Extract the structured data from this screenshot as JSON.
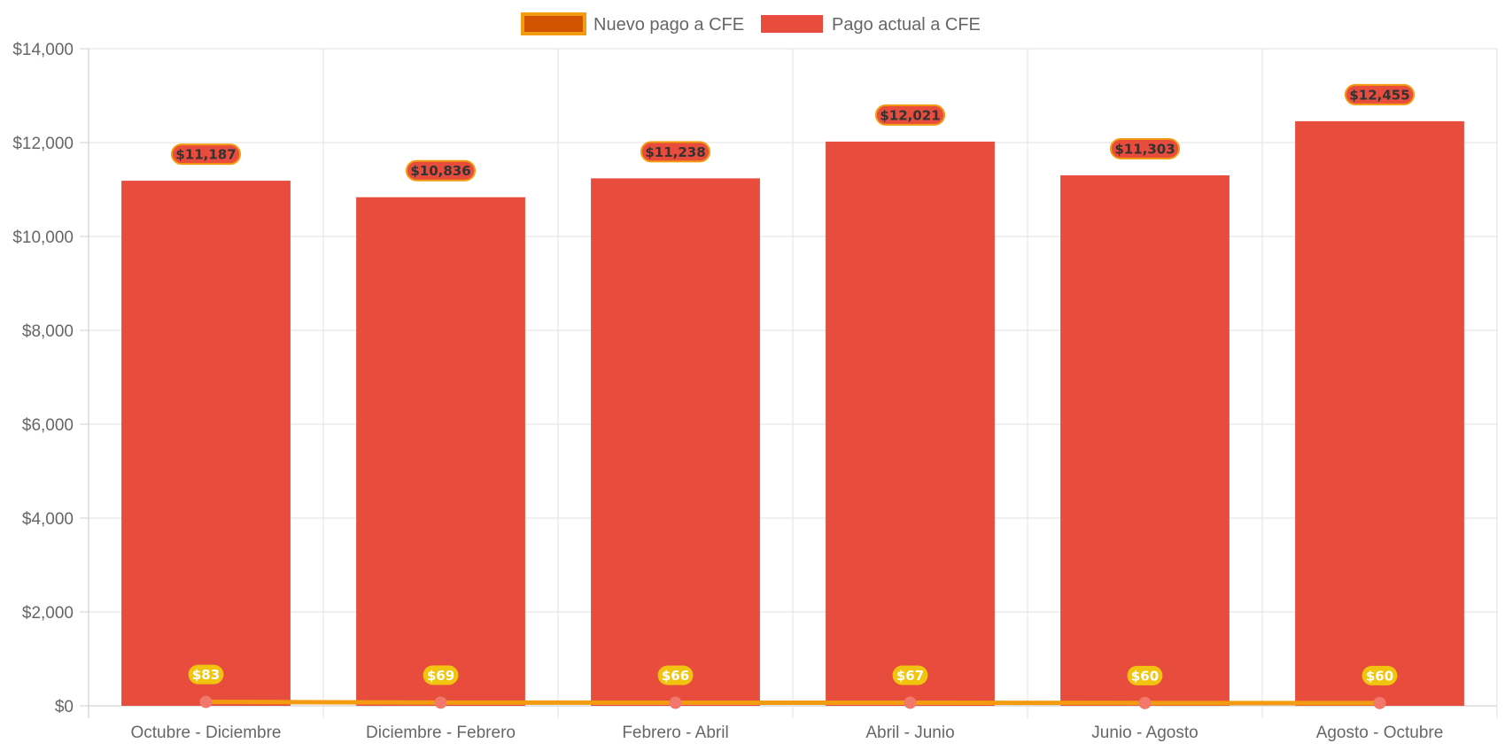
{
  "chart_data": {
    "type": "bar",
    "categories": [
      "Octubre - Diciembre",
      "Diciembre - Febrero",
      "Febrero - Abril",
      "Abril - Junio",
      "Junio - Agosto",
      "Agosto - Octubre"
    ],
    "series": [
      {
        "name": "Nuevo pago a CFE",
        "type": "line",
        "values": [
          83,
          69,
          66,
          67,
          60,
          60
        ],
        "data_labels": [
          "$83",
          "$69",
          "$66",
          "$67",
          "$60",
          "$60"
        ],
        "color": "#f39c12",
        "legend_fill": "#d35400",
        "point_color": "#f1786a",
        "label_bg": "#f1c40f",
        "label_text_color": "#ffffff"
      },
      {
        "name": "Pago actual a CFE",
        "type": "bar",
        "values": [
          11187,
          10836,
          11238,
          12021,
          11303,
          12455
        ],
        "data_labels": [
          "$11,187",
          "$10,836",
          "$11,238",
          "$12,021",
          "$11,303",
          "$12,455"
        ],
        "color": "#e74c3c",
        "label_bg": "#e74c3c",
        "label_border": "#f39c12",
        "label_text_color": "#333333"
      }
    ],
    "y_ticks": [
      "$0",
      "$2,000",
      "$4,000",
      "$6,000",
      "$8,000",
      "$10,000",
      "$12,000",
      "$14,000"
    ],
    "ylim": [
      0,
      14000
    ],
    "grid": true,
    "legend_position": "top-center",
    "title": "",
    "xlabel": "",
    "ylabel": ""
  }
}
